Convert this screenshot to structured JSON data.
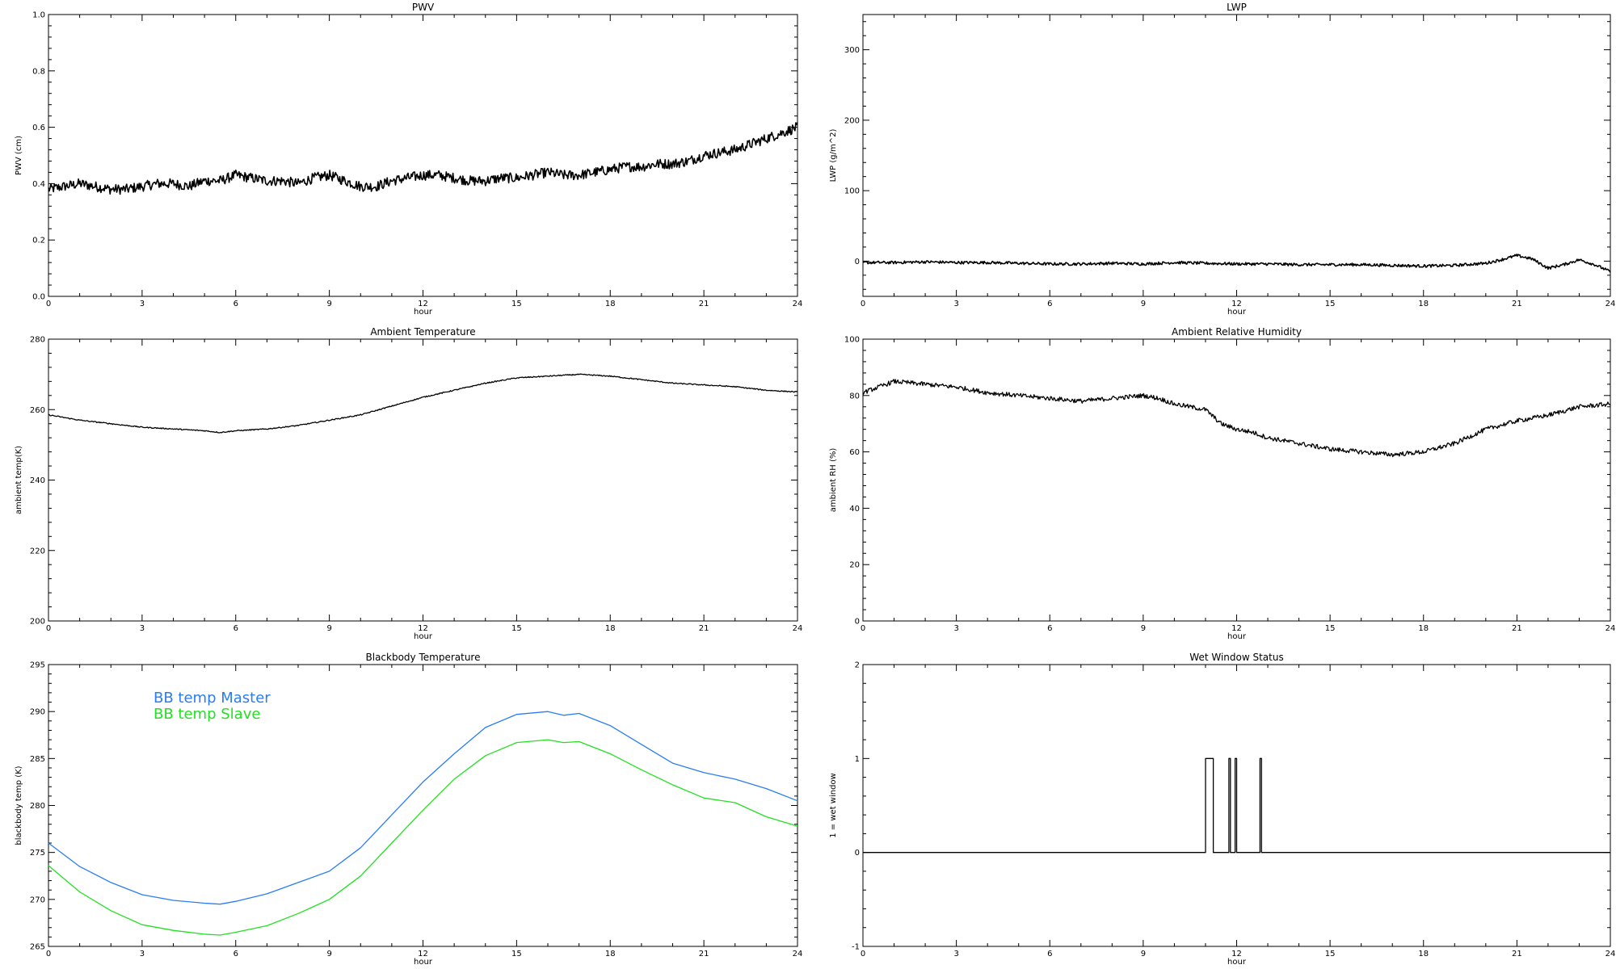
{
  "chart_data": [
    {
      "id": "pwv",
      "type": "line",
      "title": "PWV",
      "xlabel": "hour",
      "ylabel": "PWV (cm)",
      "xlim": [
        0,
        24
      ],
      "ylim": [
        0,
        1.0
      ],
      "xticks": [
        0,
        3,
        6,
        9,
        12,
        15,
        18,
        21,
        24
      ],
      "yticks": [
        0,
        0.2,
        0.4,
        0.6,
        0.8,
        1.0
      ],
      "ytick_labels": [
        "0.0",
        "0.2",
        "0.4",
        "0.6",
        "0.8",
        "1.0"
      ],
      "noise": 0.018,
      "series": [
        {
          "color": "#000000",
          "x": [
            0,
            0.5,
            1,
            1.5,
            2,
            2.5,
            3,
            3.5,
            4,
            4.5,
            5,
            5.5,
            6,
            6.5,
            7,
            7.5,
            8,
            8.5,
            9,
            9.5,
            10,
            10.5,
            11,
            11.5,
            12,
            12.5,
            13,
            13.5,
            14,
            14.5,
            15,
            15.5,
            16,
            16.5,
            17,
            17.5,
            18,
            18.5,
            19,
            19.5,
            20,
            20.5,
            21,
            21.5,
            22,
            22.5,
            23,
            23.5,
            24
          ],
          "y": [
            0.38,
            0.39,
            0.4,
            0.39,
            0.38,
            0.38,
            0.39,
            0.4,
            0.4,
            0.39,
            0.41,
            0.41,
            0.43,
            0.42,
            0.41,
            0.41,
            0.4,
            0.42,
            0.43,
            0.41,
            0.39,
            0.39,
            0.41,
            0.42,
            0.43,
            0.43,
            0.42,
            0.41,
            0.41,
            0.42,
            0.42,
            0.43,
            0.44,
            0.43,
            0.43,
            0.44,
            0.45,
            0.46,
            0.46,
            0.47,
            0.47,
            0.48,
            0.5,
            0.51,
            0.52,
            0.54,
            0.56,
            0.58,
            0.6
          ]
        }
      ]
    },
    {
      "id": "lwp",
      "type": "line",
      "title": "LWP",
      "xlabel": "hour",
      "ylabel": "LWP (g/m^2)",
      "xlim": [
        0,
        24
      ],
      "ylim": [
        -50,
        350
      ],
      "xticks": [
        0,
        3,
        6,
        9,
        12,
        15,
        18,
        21,
        24
      ],
      "yticks": [
        0,
        100,
        200,
        300
      ],
      "noise": 2,
      "series": [
        {
          "color": "#000000",
          "x": [
            0,
            1,
            2,
            3,
            4,
            5,
            6,
            7,
            8,
            9,
            10,
            11,
            12,
            13,
            14,
            15,
            16,
            17,
            18,
            19,
            20,
            20.5,
            21,
            21.5,
            22,
            22.5,
            23,
            23.5,
            24
          ],
          "y": [
            -2,
            -2,
            -1,
            -2,
            -2,
            -3,
            -4,
            -4,
            -3,
            -4,
            -2,
            -3,
            -4,
            -4,
            -5,
            -5,
            -5,
            -6,
            -7,
            -6,
            -3,
            2,
            8,
            3,
            -10,
            -5,
            2,
            -5,
            -15
          ]
        }
      ]
    },
    {
      "id": "ambient_temp",
      "type": "line",
      "title": "Ambient Temperature",
      "xlabel": "hour",
      "ylabel": "ambient temp(K)",
      "xlim": [
        0,
        24
      ],
      "ylim": [
        200,
        280
      ],
      "xticks": [
        0,
        3,
        6,
        9,
        12,
        15,
        18,
        21,
        24
      ],
      "yticks": [
        200,
        220,
        240,
        260,
        280
      ],
      "noise": 0.15,
      "series": [
        {
          "color": "#000000",
          "x": [
            0,
            1,
            2,
            3,
            4,
            5,
            5.5,
            6,
            7,
            8,
            9,
            10,
            11,
            12,
            13,
            14,
            15,
            16,
            17,
            18,
            19,
            20,
            21,
            22,
            23,
            24
          ],
          "y": [
            258.5,
            257,
            256,
            255,
            254.5,
            254,
            253.5,
            254,
            254.5,
            255.5,
            257,
            258.5,
            261,
            263.5,
            265.5,
            267.5,
            269,
            269.5,
            270,
            269.5,
            268.5,
            267.5,
            267,
            266.5,
            265.5,
            265
          ]
        }
      ]
    },
    {
      "id": "ambient_rh",
      "type": "line",
      "title": "Ambient Relative Humidity",
      "xlabel": "hour",
      "ylabel": "ambient RH (%)",
      "xlim": [
        0,
        24
      ],
      "ylim": [
        0,
        100
      ],
      "xticks": [
        0,
        3,
        6,
        9,
        12,
        15,
        18,
        21,
        24
      ],
      "yticks": [
        0,
        20,
        40,
        60,
        80,
        100
      ],
      "noise": 0.8,
      "series": [
        {
          "color": "#000000",
          "x": [
            0,
            0.5,
            1,
            2,
            3,
            4,
            5,
            6,
            7,
            8,
            9,
            9.5,
            10,
            11,
            11.5,
            12,
            12.5,
            13,
            14,
            15,
            16,
            17,
            18,
            19,
            20,
            21,
            22,
            23,
            24
          ],
          "y": [
            81,
            83,
            85,
            84,
            83,
            81,
            80,
            79,
            78,
            79,
            80,
            79,
            77,
            75,
            70,
            68,
            67,
            65,
            63,
            61,
            60,
            59,
            60,
            63,
            68,
            71,
            73,
            76,
            77
          ]
        }
      ]
    },
    {
      "id": "bb_temp",
      "type": "line",
      "title": "Blackbody Temperature",
      "xlabel": "hour",
      "ylabel": "blackbody temp (K)",
      "xlim": [
        0,
        24
      ],
      "ylim": [
        265,
        295
      ],
      "xticks": [
        0,
        3,
        6,
        9,
        12,
        15,
        18,
        21,
        24
      ],
      "yticks": [
        265,
        270,
        275,
        280,
        285,
        290,
        295
      ],
      "noise": 0,
      "legend": "top-left",
      "series": [
        {
          "name": "BB temp Master",
          "color": "#2a7df2",
          "x": [
            0,
            1,
            2,
            3,
            4,
            5,
            5.5,
            6,
            7,
            8,
            9,
            10,
            11,
            12,
            13,
            14,
            15,
            16,
            16.5,
            17,
            18,
            19,
            20,
            21,
            22,
            23,
            24
          ],
          "y": [
            276,
            273.5,
            271.8,
            270.5,
            269.9,
            269.6,
            269.5,
            269.8,
            270.6,
            271.8,
            273,
            275.5,
            279,
            282.5,
            285.5,
            288.3,
            289.7,
            290,
            289.6,
            289.8,
            288.5,
            286.5,
            284.5,
            283.5,
            282.8,
            281.8,
            280.5
          ]
        },
        {
          "name": "BB temp Slave",
          "color": "#22e022",
          "x": [
            0,
            1,
            2,
            3,
            4,
            5,
            5.5,
            6,
            7,
            8,
            9,
            10,
            11,
            12,
            13,
            14,
            15,
            16,
            16.5,
            17,
            18,
            19,
            20,
            21,
            22,
            23,
            24
          ],
          "y": [
            273.6,
            270.8,
            268.8,
            267.3,
            266.7,
            266.3,
            266.2,
            266.5,
            267.2,
            268.5,
            270,
            272.5,
            276,
            279.5,
            282.8,
            285.3,
            286.7,
            287,
            286.7,
            286.8,
            285.5,
            283.8,
            282.2,
            280.8,
            280.3,
            278.8,
            277.8
          ]
        }
      ]
    },
    {
      "id": "wet_window",
      "type": "line",
      "title": "Wet Window Status",
      "xlabel": "hour",
      "ylabel": "1 = wet window",
      "xlim": [
        0,
        24
      ],
      "ylim": [
        -1,
        2
      ],
      "xticks": [
        0,
        3,
        6,
        9,
        12,
        15,
        18,
        21,
        24
      ],
      "yticks": [
        -1,
        0,
        1,
        2
      ],
      "noise": 0,
      "series": [
        {
          "color": "#000000",
          "x": [
            0,
            11.0,
            11.0,
            11.25,
            11.25,
            11.75,
            11.75,
            11.8,
            11.8,
            11.95,
            11.95,
            12.0,
            12.0,
            12.75,
            12.75,
            12.8,
            12.8,
            24
          ],
          "y": [
            0,
            0,
            1,
            1,
            0,
            0,
            1,
            1,
            0,
            0,
            1,
            1,
            0,
            0,
            1,
            1,
            0,
            0
          ]
        }
      ]
    }
  ]
}
